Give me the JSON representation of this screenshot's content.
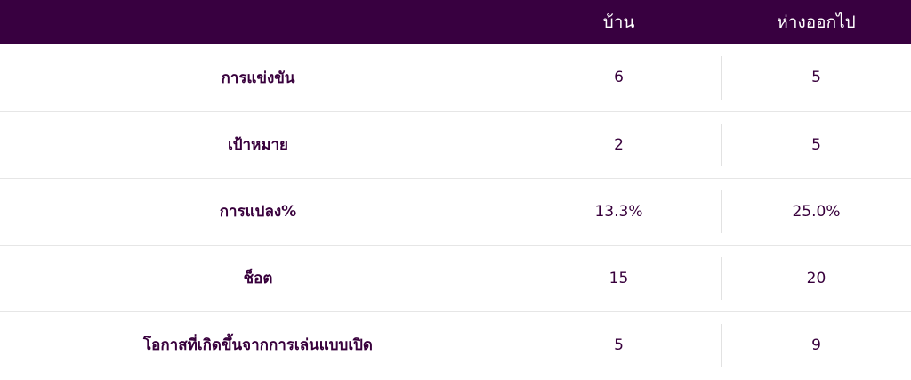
{
  "header": {
    "home_label": "บ้าน",
    "away_label": "ห่างออกไป"
  },
  "rows": [
    {
      "label": "การแข่งขัน",
      "home": "6",
      "away": "5"
    },
    {
      "label": "เป้าหมาย",
      "home": "2",
      "away": "5"
    },
    {
      "label": "การแปลง%",
      "home": "13.3%",
      "away": "25.0%"
    },
    {
      "label": "ช็อต",
      "home": "15",
      "away": "20"
    },
    {
      "label": "โอกาสที่เกิดขึ้นจากการเล่นแบบเปิด",
      "home": "5",
      "away": "9"
    }
  ],
  "colors": {
    "header_bg": "#380040",
    "header_text": "#ffffff",
    "body_text": "#38003c",
    "divider": "#e6e6e6"
  }
}
